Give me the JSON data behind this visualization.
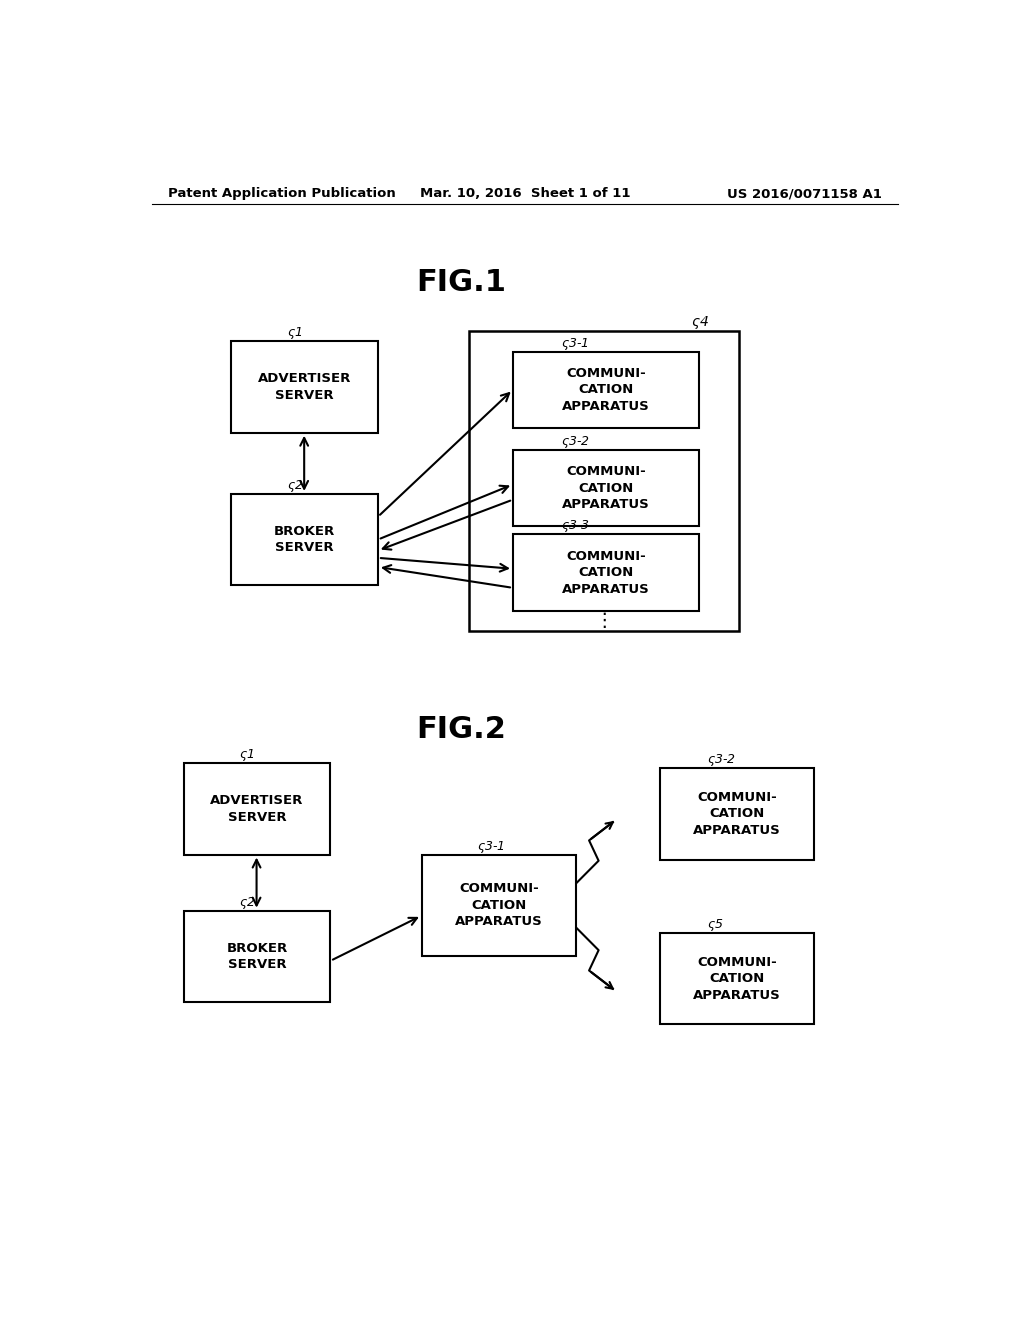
{
  "bg_color": "#ffffff",
  "header_left": "Patent Application Publication",
  "header_mid": "Mar. 10, 2016  Sheet 1 of 11",
  "header_right": "US 2016/0071158 A1",
  "fig1_title": "FIG.1",
  "fig2_title": "FIG.2"
}
